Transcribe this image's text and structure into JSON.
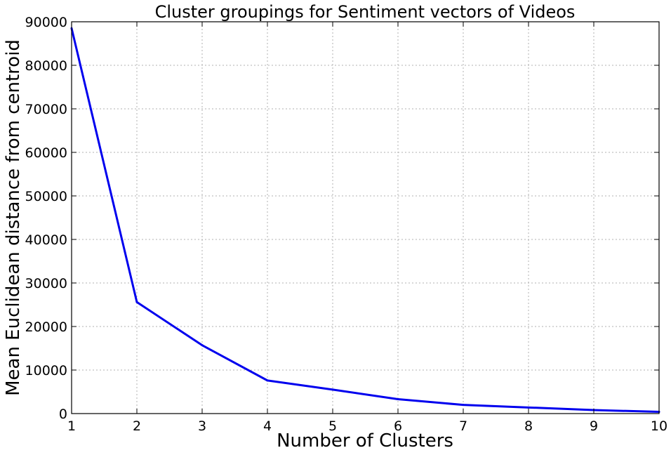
{
  "chart_data": {
    "type": "line",
    "title": "Cluster groupings for Sentiment vectors of Videos",
    "xlabel": "Number of Clusters",
    "ylabel": "Mean Euclidean distance from centroid",
    "xlim": [
      1,
      10
    ],
    "ylim": [
      0,
      90000
    ],
    "xticks": [
      1,
      2,
      3,
      4,
      5,
      6,
      7,
      8,
      9,
      10
    ],
    "yticks": [
      0,
      10000,
      20000,
      30000,
      40000,
      50000,
      60000,
      70000,
      80000,
      90000
    ],
    "grid": true,
    "series": [
      {
        "x": [
          1,
          2,
          3,
          4,
          5,
          6,
          7,
          8,
          9,
          10
        ],
        "y": [
          88500,
          25600,
          15700,
          7600,
          5500,
          3300,
          2000,
          1400,
          800,
          400
        ]
      }
    ],
    "colors": {
      "line": "#0000ee",
      "axes": "#000000",
      "grid": "#b0b0b0",
      "background": "#ffffff"
    }
  }
}
